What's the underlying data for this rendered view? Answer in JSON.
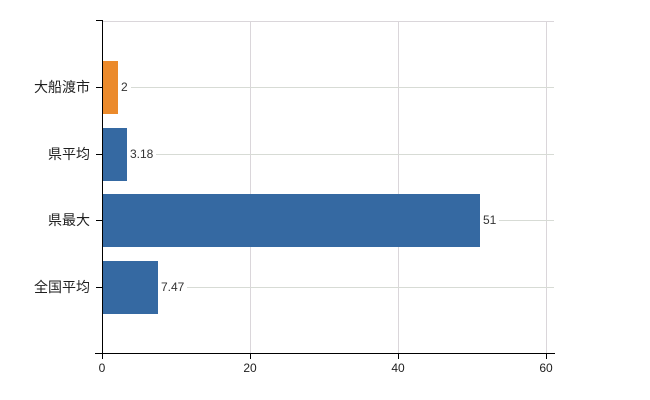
{
  "chart_data": {
    "type": "bar",
    "orientation": "horizontal",
    "title": "",
    "xlabel": "",
    "ylabel": "",
    "categories": [
      "大船渡市",
      "県平均",
      "県最大",
      "全国平均"
    ],
    "values": [
      2,
      3.18,
      51,
      7.47
    ],
    "value_labels": [
      "2",
      "3.18",
      "51",
      "7.47"
    ],
    "bar_colors": [
      "#eb8a2b",
      "#3569a2",
      "#3569a2",
      "#3569a2"
    ],
    "x_ticks": [
      0,
      20,
      40,
      60
    ],
    "x_tick_labels": [
      "0",
      "20",
      "40",
      "60"
    ],
    "xlim": [
      0,
      61
    ],
    "grid": true,
    "legend": false,
    "colors": {
      "bar_default": "#3569a2",
      "bar_highlight": "#eb8a2b",
      "grid_line": "#d7dbd5",
      "axis": "#000000",
      "value_text": "#333333",
      "label_text": "#1f1f1f",
      "background": "#ffffff"
    }
  }
}
